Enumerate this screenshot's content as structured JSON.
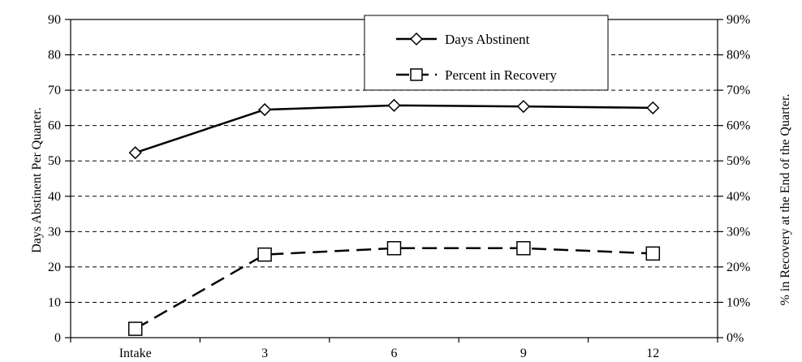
{
  "chart_data": {
    "type": "line",
    "categories": [
      "Intake",
      "3",
      "6",
      "9",
      "12"
    ],
    "series": [
      {
        "name": "Days Abstinent",
        "axis": "left",
        "style": "solid",
        "marker": "diamond",
        "values": [
          52.3,
          64.5,
          65.7,
          65.4,
          65.0
        ]
      },
      {
        "name": "Percent in Recovery",
        "axis": "right",
        "style": "dashed",
        "marker": "square",
        "values": [
          2.5,
          23.5,
          25.3,
          25.3,
          23.8
        ]
      }
    ],
    "ylabel_left": "Days Abstinent Per Quarter.",
    "ylabel_right": "% in Recovery at the End of the Quarter.",
    "ylim_left": [
      0,
      90
    ],
    "ylim_right": [
      0,
      90
    ],
    "yticks_left": [
      "0",
      "10",
      "20",
      "30",
      "40",
      "50",
      "60",
      "70",
      "80",
      "90"
    ],
    "yticks_right": [
      "0%",
      "10%",
      "20%",
      "30%",
      "40%",
      "50%",
      "60%",
      "70%",
      "80%",
      "90%"
    ],
    "grid": "horizontal-dashed",
    "legend_position": "top-right",
    "colors": {
      "line": "#000000",
      "grid": "#000000",
      "background": "#ffffff"
    }
  }
}
